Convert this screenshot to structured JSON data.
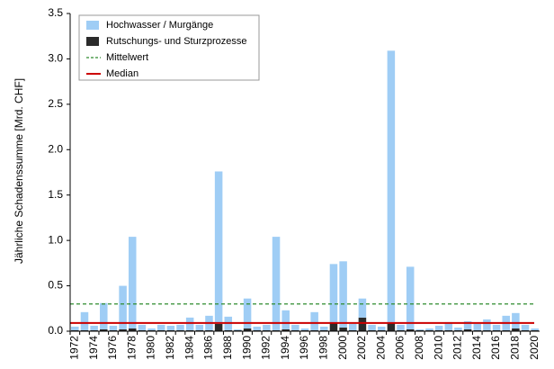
{
  "chart_data": {
    "type": "stacked_bar",
    "ylabel": "Jährliche Schadenssumme [Mrd. CHF]",
    "categories": [
      "1972",
      null,
      "1974",
      null,
      "1976",
      null,
      "1978",
      null,
      "1980",
      null,
      "1982",
      null,
      "1984",
      null,
      "1986",
      null,
      "1988",
      null,
      "1990",
      null,
      "1992",
      null,
      "1994",
      null,
      "1996",
      null,
      "1998",
      null,
      "2000",
      null,
      "2002",
      null,
      "2004",
      null,
      "2006",
      null,
      "2008",
      null,
      "2010",
      null,
      "2012",
      null,
      "2014",
      null,
      "2016",
      null,
      "2018",
      null,
      "2020"
    ],
    "series": [
      {
        "name": "Rutschungs- und Sturzprozesse",
        "color": "#2b2b2b",
        "values": [
          0.01,
          0.01,
          0.01,
          0.02,
          0.01,
          0.02,
          0.03,
          0.01,
          0.01,
          0.01,
          0.01,
          0.01,
          0.01,
          0.01,
          0.01,
          0.08,
          0.01,
          0.01,
          0.03,
          0.01,
          0.01,
          0.01,
          0.02,
          0.01,
          0.01,
          0.01,
          0.01,
          0.09,
          0.04,
          0.01,
          0.15,
          0.01,
          0.01,
          0.09,
          0.01,
          0.02,
          0.01,
          0.01,
          0.01,
          0.01,
          0.01,
          0.02,
          0.01,
          0.01,
          0.01,
          0.01,
          0.03,
          0.01,
          0.01
        ]
      },
      {
        "name": "Hochwasser / Murgänge",
        "color": "#9fcdf5",
        "values": [
          0.04,
          0.2,
          0.05,
          0.29,
          0.05,
          0.48,
          1.01,
          0.06,
          0.02,
          0.06,
          0.05,
          0.06,
          0.14,
          0.06,
          0.16,
          1.68,
          0.15,
          0.01,
          0.33,
          0.04,
          0.06,
          1.03,
          0.21,
          0.06,
          0.02,
          0.2,
          0.04,
          0.65,
          0.73,
          0.07,
          0.21,
          0.06,
          0.04,
          3.0,
          0.06,
          0.69,
          0.01,
          0.02,
          0.05,
          0.09,
          0.03,
          0.09,
          0.07,
          0.12,
          0.06,
          0.16,
          0.17,
          0.06,
          0.02
        ]
      }
    ],
    "lines": [
      {
        "name": "Mittelwert",
        "value": 0.3,
        "color": "#2e8b2e",
        "dashed": true
      },
      {
        "name": "Median",
        "value": 0.09,
        "color": "#cc0000",
        "dashed": false
      }
    ],
    "ylim": [
      0,
      3.5
    ],
    "yticks": [
      {
        "value": 0,
        "label": "0.0"
      },
      0.5,
      {
        "value": 1,
        "label": "1.0"
      },
      1.5,
      {
        "value": 2,
        "label": "2.0"
      },
      2.5,
      {
        "value": 3,
        "label": "3.0"
      },
      3.5
    ]
  }
}
